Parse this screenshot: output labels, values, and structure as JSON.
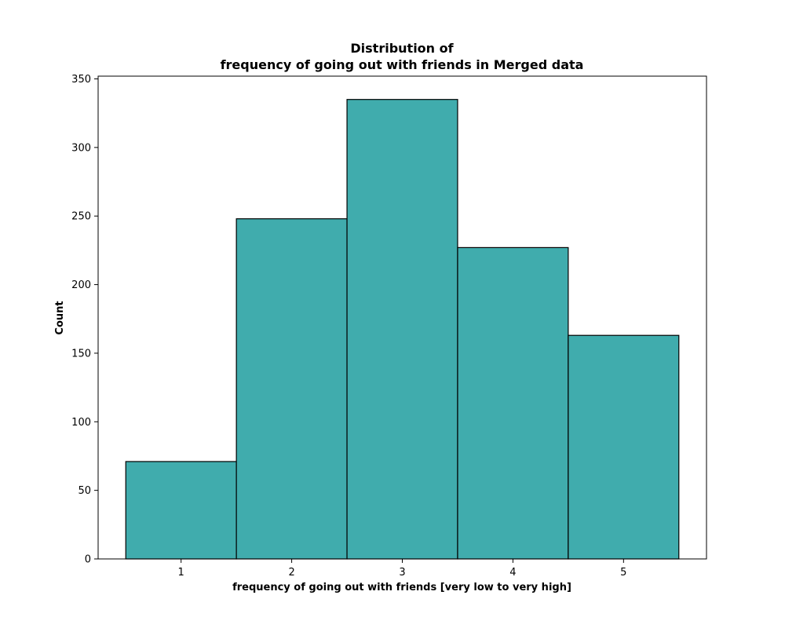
{
  "chart_data": {
    "type": "bar",
    "title_line1": "Distribution of",
    "title_line2": "frequency of going out with friends in Merged data",
    "xlabel": "frequency of going out with friends [very low to very high]",
    "ylabel": "Count",
    "categories": [
      "1",
      "2",
      "3",
      "4",
      "5"
    ],
    "values": [
      71,
      248,
      335,
      227,
      163
    ],
    "ylim": [
      0,
      352
    ],
    "yticks": [
      0,
      50,
      100,
      150,
      200,
      250,
      300,
      350
    ],
    "xlim": [
      0.25,
      5.75
    ],
    "bar_color": "#40acad",
    "edge_color": "#000000",
    "grid": false,
    "legend": "none"
  }
}
